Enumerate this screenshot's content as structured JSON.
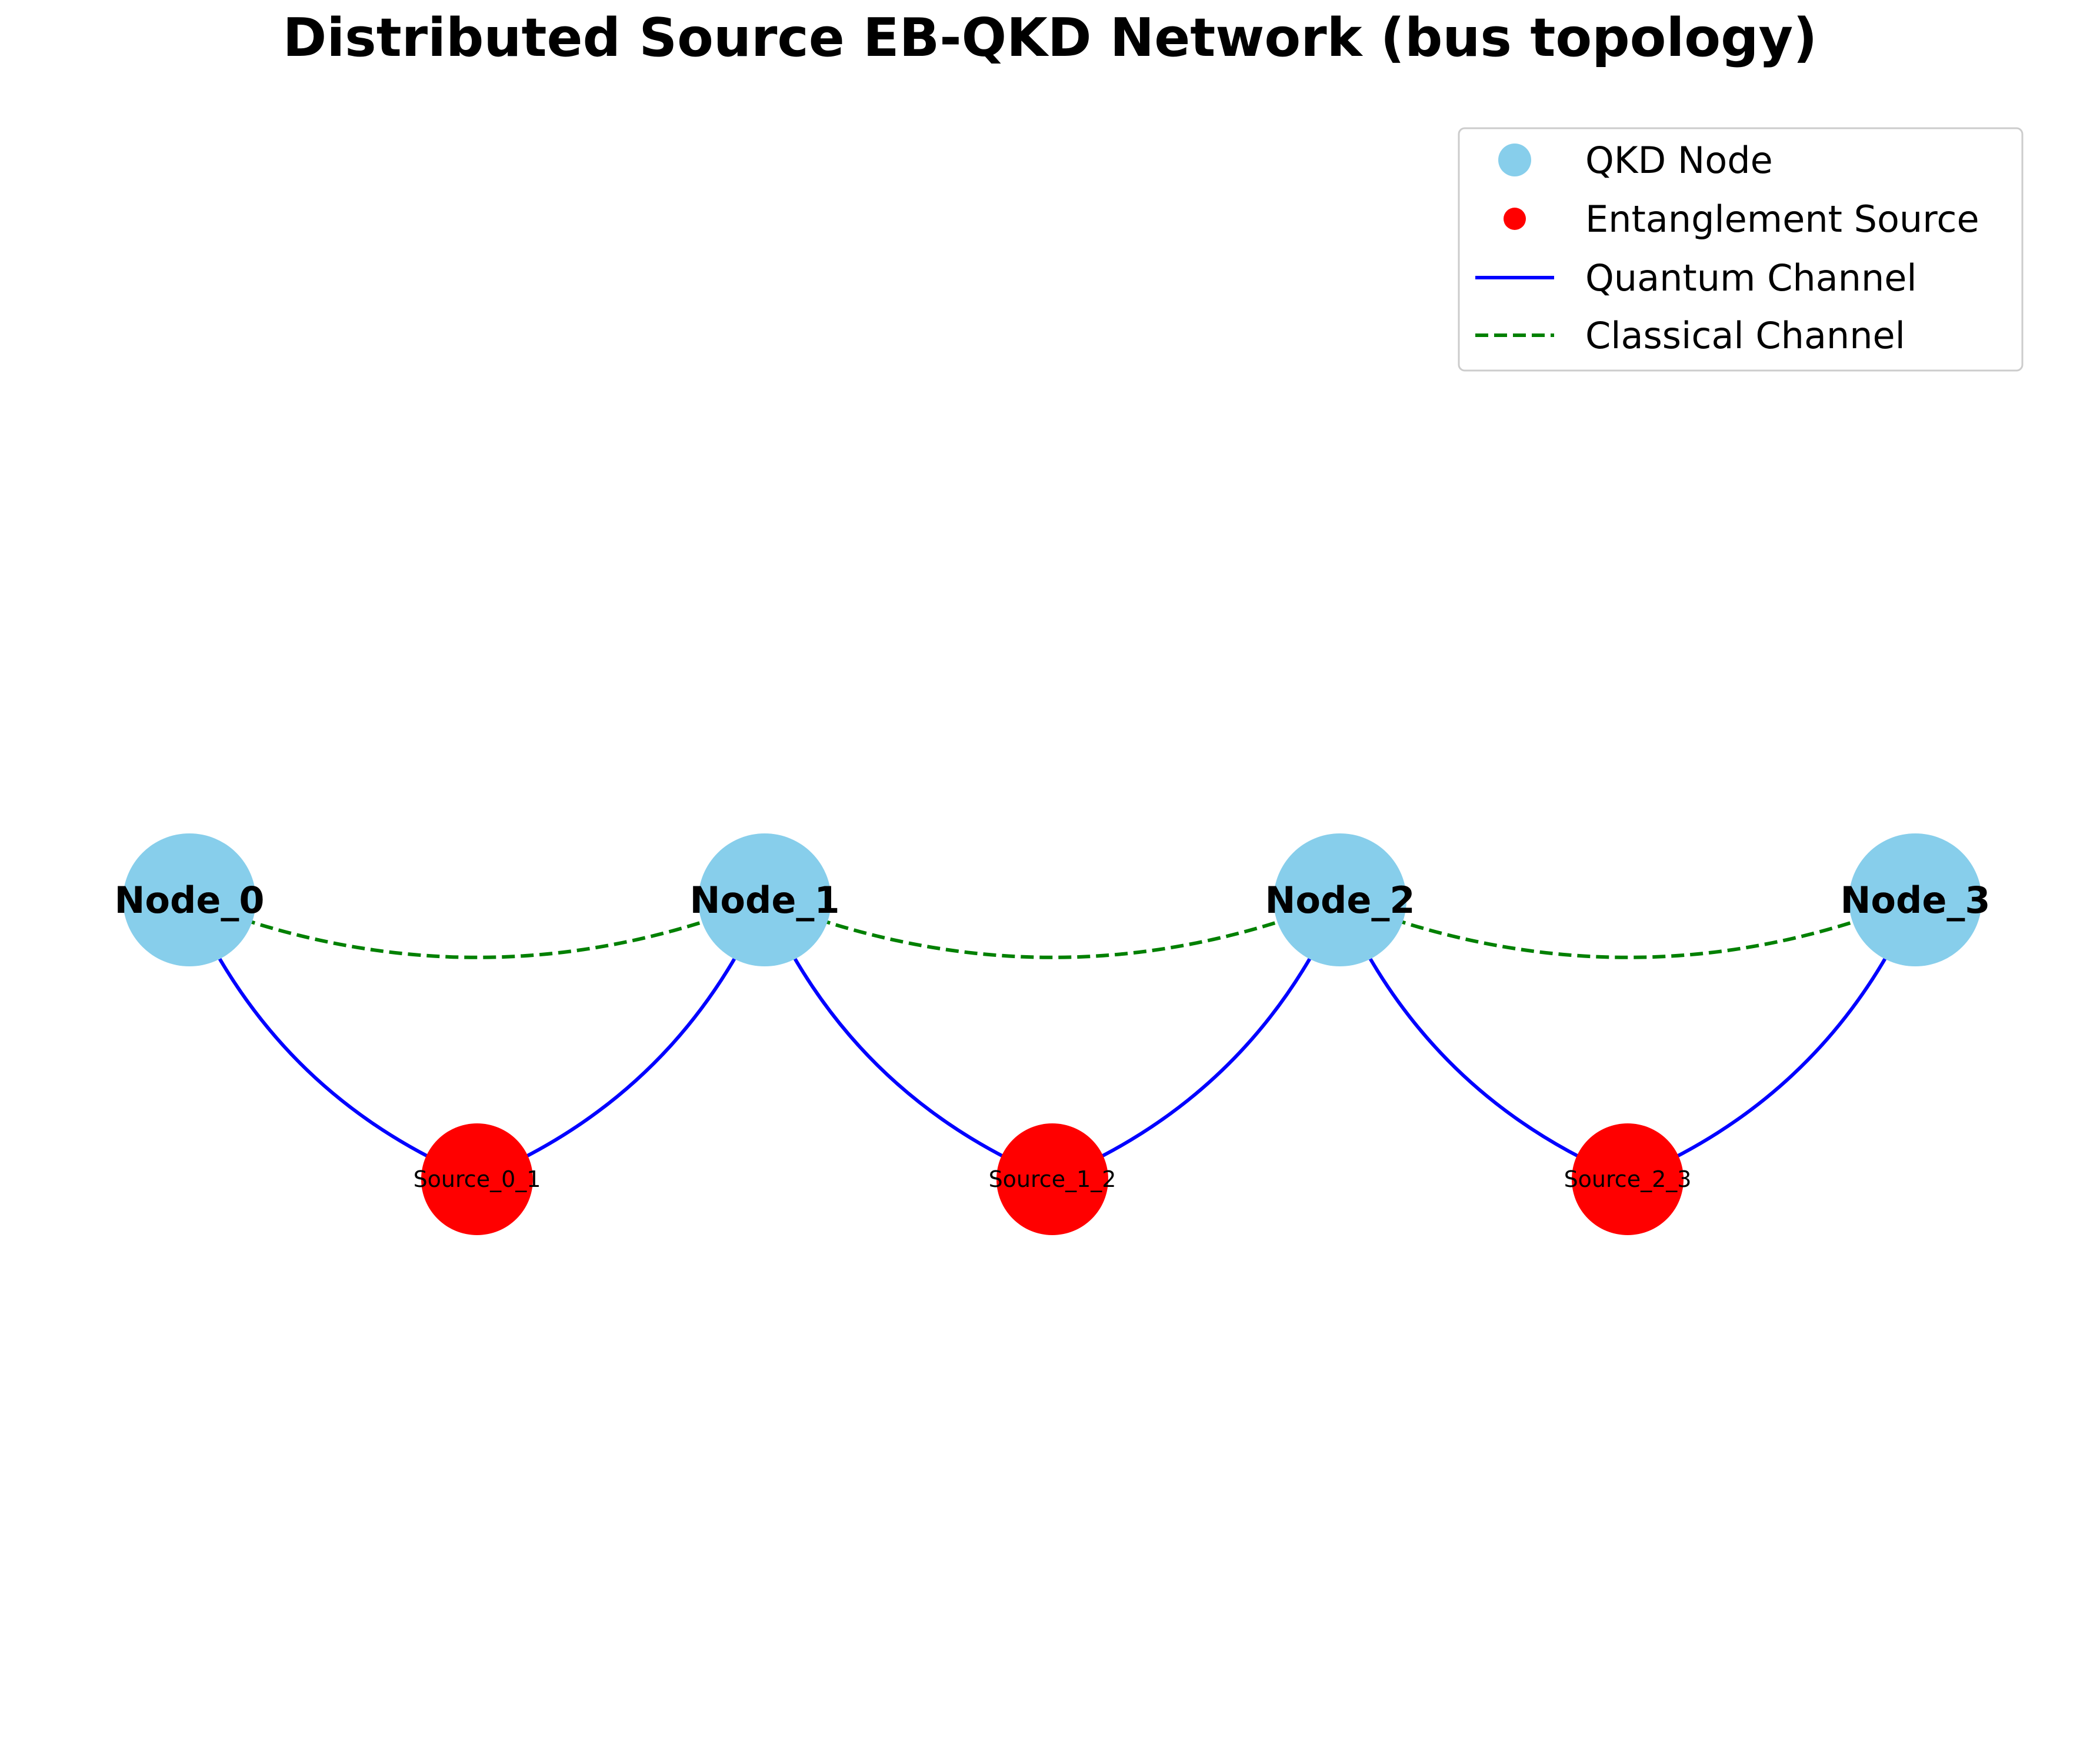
{
  "title": "Distributed Source EB-QKD Network (bus topology)",
  "colors": {
    "qkd_node": "#87CEEB",
    "entanglement_source": "#FF0000",
    "quantum_channel": "#0000FF",
    "classical_channel": "#008000",
    "legend_border": "#cccccc"
  },
  "legend": {
    "placement": "upper-right",
    "items": [
      {
        "label": "QKD Node",
        "marker": "large-circle",
        "color": "#87CEEB"
      },
      {
        "label": "Entanglement Source",
        "marker": "small-circle",
        "color": "#FF0000"
      },
      {
        "label": "Quantum Channel",
        "marker": "solid-line",
        "color": "#0000FF"
      },
      {
        "label": "Classical Channel",
        "marker": "dashed-line",
        "color": "#008000"
      }
    ]
  },
  "nodes": [
    {
      "id": "Node_0",
      "label": "Node_0",
      "type": "qkd"
    },
    {
      "id": "Node_1",
      "label": "Node_1",
      "type": "qkd"
    },
    {
      "id": "Node_2",
      "label": "Node_2",
      "type": "qkd"
    },
    {
      "id": "Node_3",
      "label": "Node_3",
      "type": "qkd"
    }
  ],
  "sources": [
    {
      "id": "Source_0_1",
      "label": "Source_0_1",
      "between": [
        "Node_0",
        "Node_1"
      ]
    },
    {
      "id": "Source_1_2",
      "label": "Source_1_2",
      "between": [
        "Node_1",
        "Node_2"
      ]
    },
    {
      "id": "Source_2_3",
      "label": "Source_2_3",
      "between": [
        "Node_2",
        "Node_3"
      ]
    }
  ],
  "quantum_channels": [
    {
      "from": "Node_0",
      "to": "Source_0_1"
    },
    {
      "from": "Source_0_1",
      "to": "Node_1"
    },
    {
      "from": "Node_1",
      "to": "Source_1_2"
    },
    {
      "from": "Source_1_2",
      "to": "Node_2"
    },
    {
      "from": "Node_2",
      "to": "Source_2_3"
    },
    {
      "from": "Source_2_3",
      "to": "Node_3"
    }
  ],
  "classical_channels": [
    {
      "from": "Node_0",
      "to": "Node_1"
    },
    {
      "from": "Node_1",
      "to": "Node_2"
    },
    {
      "from": "Node_2",
      "to": "Node_3"
    }
  ]
}
